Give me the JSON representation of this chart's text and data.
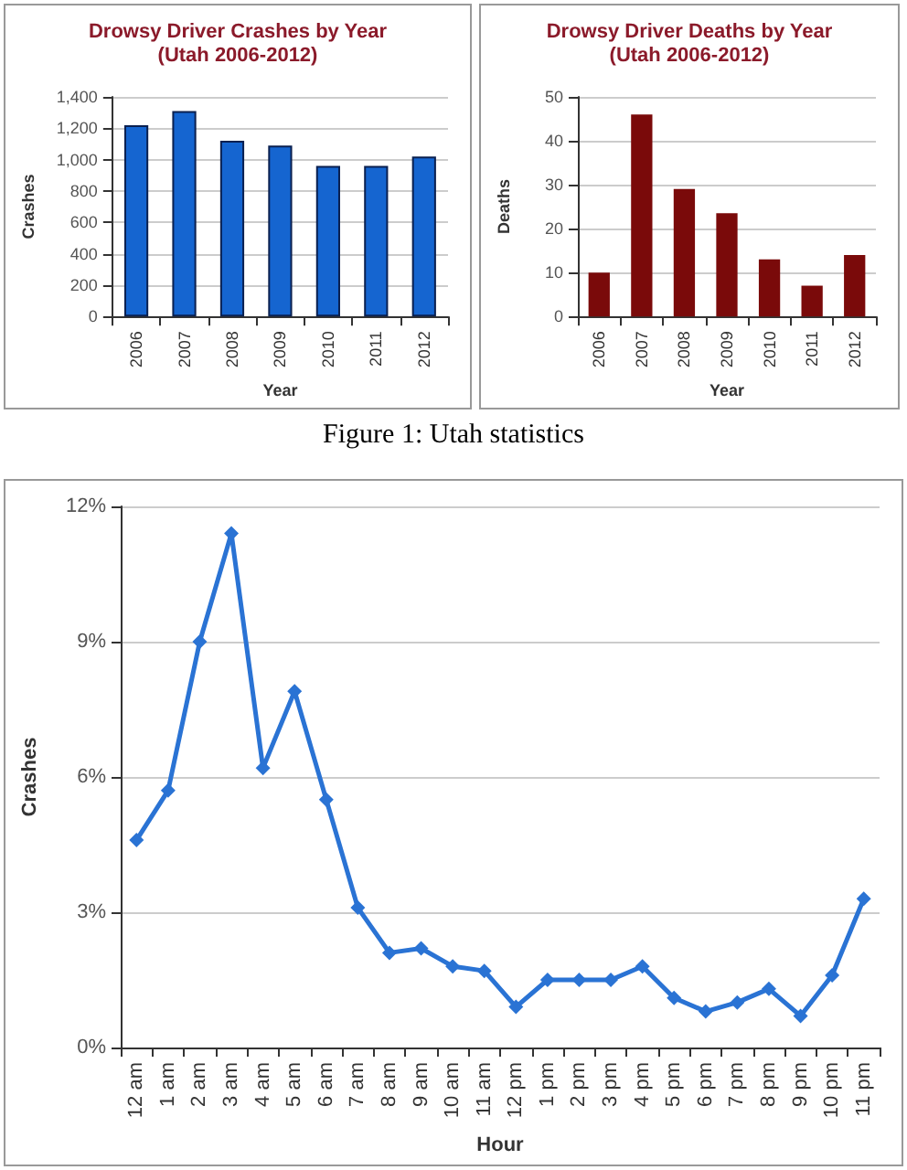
{
  "chart_data": [
    {
      "type": "bar",
      "title": "Drowsy Driver Crashes by Year",
      "subtitle": "(Utah 2006-2012)",
      "xlabel": "Year",
      "ylabel": "Crashes",
      "categories": [
        "2006",
        "2007",
        "2008",
        "2009",
        "2010",
        "2011",
        "2012"
      ],
      "values": [
        1220,
        1310,
        1120,
        1090,
        960,
        960,
        1020
      ],
      "color": "#1565d0",
      "ylim": [
        0,
        1400
      ],
      "yticks": [
        0,
        {
          "value": 200,
          "label": "200"
        },
        {
          "value": 400,
          "label": "400"
        },
        {
          "value": 600,
          "label": "600"
        },
        {
          "value": 800,
          "label": "800"
        },
        {
          "value": 1000,
          "label": "1,000"
        },
        {
          "value": 1200,
          "label": "1,200"
        },
        {
          "value": 1400,
          "label": "1,400"
        }
      ],
      "grid": "y",
      "annotations": [
        "Figure 1: Utah statistics"
      ]
    },
    {
      "type": "bar",
      "title": "Drowsy Driver Deaths by Year",
      "subtitle": "(Utah 2006-2012)",
      "xlabel": "Year",
      "ylabel": "Deaths",
      "categories": [
        "2006",
        "2007",
        "2008",
        "2009",
        "2010",
        "2011",
        "2012"
      ],
      "values": [
        10,
        46,
        29,
        23.5,
        13,
        7,
        14
      ],
      "color": "#7a0a0a",
      "ylim": [
        0,
        50
      ],
      "yticks": [
        0,
        10,
        20,
        30,
        40,
        50
      ],
      "grid": "y"
    },
    {
      "type": "line",
      "xlabel": "Hour",
      "ylabel": "Crashes",
      "categories": [
        "12 am",
        "1 am",
        "2 am",
        "3 am",
        "4 am",
        "5 am",
        "6 am",
        "7 am",
        "8 am",
        "9 am",
        "10 am",
        "11 am",
        "12 pm",
        "1 pm",
        "2 pm",
        "3 pm",
        "4 pm",
        "5 pm",
        "6 pm",
        "7 pm",
        "8 pm",
        "9 pm",
        "10 pm",
        "11 pm"
      ],
      "values": [
        4.6,
        5.7,
        9.0,
        11.4,
        6.2,
        7.9,
        5.5,
        3.1,
        2.1,
        2.2,
        1.8,
        1.7,
        0.9,
        1.5,
        1.5,
        1.5,
        1.8,
        1.1,
        0.8,
        1.0,
        1.3,
        0.7,
        1.6,
        3.3
      ],
      "color": "#2a73d4",
      "ylim": [
        0,
        12
      ],
      "yticks": [
        {
          "value": 0,
          "label": "0%"
        },
        {
          "value": 3,
          "label": "3%"
        },
        {
          "value": 6,
          "label": "6%"
        },
        {
          "value": 9,
          "label": "9%"
        },
        {
          "value": 12,
          "label": "12%"
        }
      ],
      "grid": "y",
      "marker": "diamond",
      "line_style": "solid"
    }
  ]
}
